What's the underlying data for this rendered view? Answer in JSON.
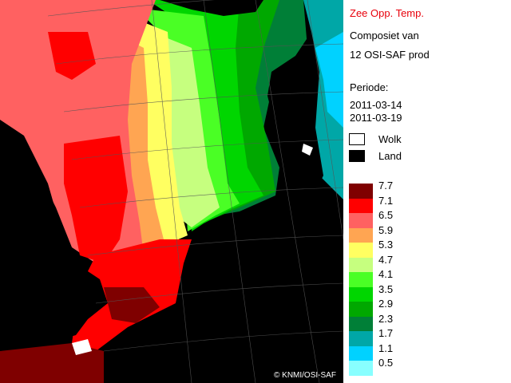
{
  "panel": {
    "title": "Zee Opp. Temp.",
    "subtitle_line1": "Composiet van",
    "subtitle_line2": "12 OSI-SAF prod",
    "period_label": "Periode:",
    "period_start": "2011-03-14",
    "period_end": "2011-03-19"
  },
  "masks": [
    {
      "label": "Wolk",
      "color": "#ffffff"
    },
    {
      "label": "Land",
      "color": "#000000"
    }
  ],
  "legend": {
    "ticks": [
      "7.7",
      "7.1",
      "6.5",
      "5.9",
      "5.3",
      "4.7",
      "4.1",
      "3.5",
      "2.9",
      "2.3",
      "1.7",
      "1.1",
      "0.5"
    ],
    "colors": [
      "#7f0000",
      "#ff0000",
      "#ff6161",
      "#ffa552",
      "#ffff61",
      "#c6ff7f",
      "#4aff25",
      "#00d600",
      "#00a800",
      "#007f37",
      "#00a7a7",
      "#00d2ff",
      "#88ffff"
    ]
  },
  "credit": "© KNMI/OSI-SAF"
}
